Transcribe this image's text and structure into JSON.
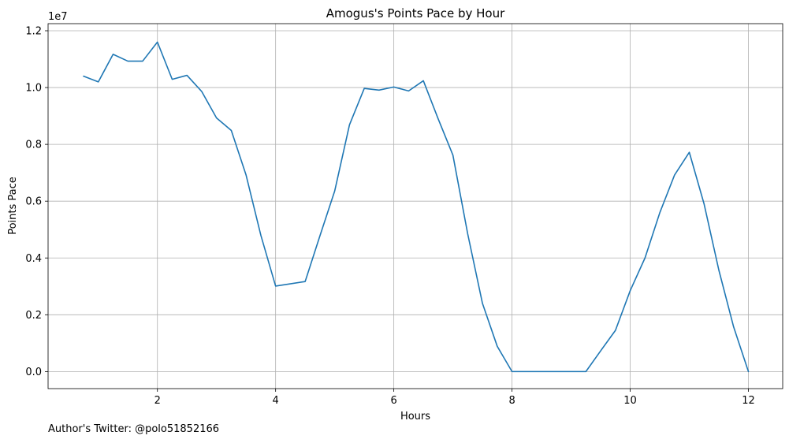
{
  "chart_data": {
    "type": "line",
    "title": "Amogus's Points Pace by Hour",
    "xlabel": "Hours",
    "ylabel": "Points Pace",
    "y_offset_label": "1e7",
    "y_scale": 10000000,
    "xlim": [
      0.15,
      12.58
    ],
    "ylim": [
      -600000,
      12250000
    ],
    "x_ticks": [
      2,
      4,
      6,
      8,
      10,
      12
    ],
    "x_tick_labels": [
      "2",
      "4",
      "6",
      "8",
      "10",
      "12"
    ],
    "y_ticks": [
      0,
      2000000,
      4000000,
      6000000,
      8000000,
      10000000,
      12000000
    ],
    "y_tick_labels": [
      "0.0",
      "0.2",
      "0.4",
      "0.6",
      "0.8",
      "1.0",
      "1.2"
    ],
    "grid": true,
    "series": [
      {
        "color": "#1f77b4",
        "x": [
          0.75,
          1.0,
          1.25,
          1.5,
          1.75,
          2.0,
          2.25,
          2.5,
          2.75,
          3.0,
          3.25,
          3.5,
          3.75,
          4.0,
          4.5,
          4.75,
          5.0,
          5.25,
          5.5,
          5.75,
          6.0,
          6.25,
          6.5,
          6.75,
          7.0,
          7.25,
          7.5,
          7.75,
          8.0,
          9.25,
          9.5,
          9.75,
          10.0,
          10.25,
          10.5,
          10.75,
          11.0,
          11.25,
          11.5,
          11.75,
          12.0
        ],
        "y": [
          10400000,
          10200000,
          11170000,
          10930000,
          10930000,
          11600000,
          10290000,
          10430000,
          9860000,
          8930000,
          8490000,
          6920000,
          4800000,
          3010000,
          3170000,
          4780000,
          6360000,
          8690000,
          9970000,
          9910000,
          10020000,
          9880000,
          10240000,
          8900000,
          7620000,
          4850000,
          2400000,
          890000,
          0,
          0,
          730000,
          1450000,
          2850000,
          4000000,
          5590000,
          6920000,
          7720000,
          5900000,
          3570000,
          1570000,
          0
        ]
      }
    ]
  },
  "footnote": "Author's Twitter: @polo51852166"
}
